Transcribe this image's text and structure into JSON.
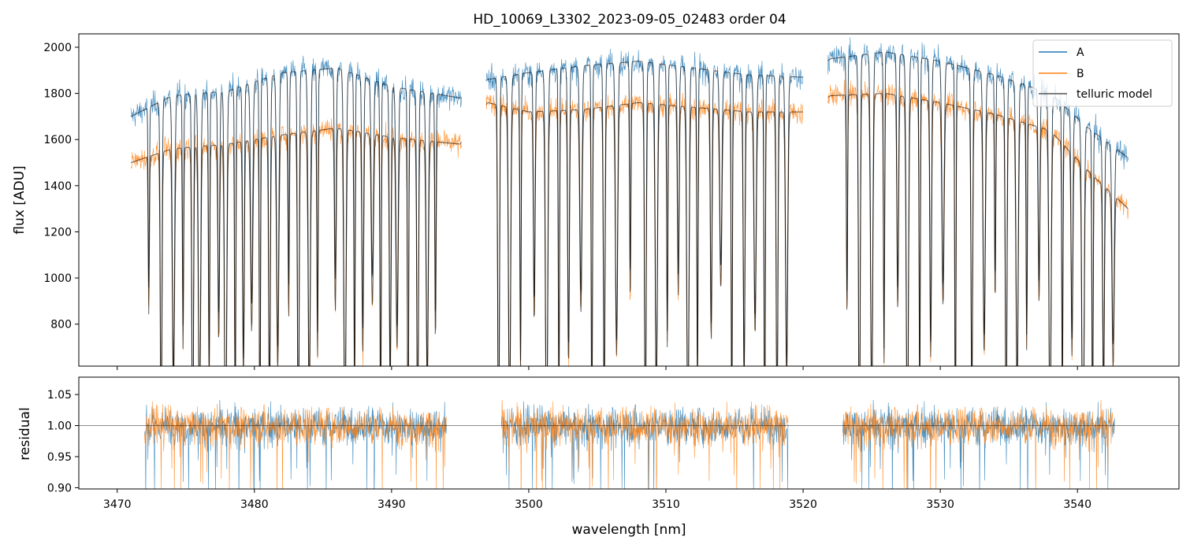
{
  "chart_data": [
    {
      "type": "line",
      "title": "HD_10069_L3302_2023-09-05_02483  order 04",
      "xlabel": "",
      "ylabel": "flux [ADU]",
      "xlim": [
        3467.2,
        3547.4
      ],
      "ylim": [
        618,
        2058
      ],
      "yticks": [
        800,
        1000,
        1200,
        1400,
        1600,
        1800,
        2000
      ],
      "xticks": [
        3470,
        3480,
        3490,
        3500,
        3510,
        3520,
        3530,
        3540
      ],
      "x_segments": [
        [
          3471.0,
          3495.1
        ],
        [
          3496.9,
          3520.0
        ],
        [
          3521.8,
          3543.7
        ]
      ],
      "series": [
        {
          "name": "A",
          "color": "#1f77b4",
          "continuum_anchors": [
            [
              3471,
              1700
            ],
            [
              3474,
              1790
            ],
            [
              3478,
              1810
            ],
            [
              3482,
              1890
            ],
            [
              3486,
              1910
            ],
            [
              3490,
              1830
            ],
            [
              3495,
              1780
            ],
            [
              3497,
              1860
            ],
            [
              3500,
              1890
            ],
            [
              3504,
              1920
            ],
            [
              3508,
              1940
            ],
            [
              3512,
              1910
            ],
            [
              3516,
              1880
            ],
            [
              3520,
              1870
            ],
            [
              3522,
              1950
            ],
            [
              3526,
              1980
            ],
            [
              3530,
              1940
            ],
            [
              3534,
              1880
            ],
            [
              3538,
              1800
            ],
            [
              3541,
              1640
            ],
            [
              3543.7,
              1520
            ]
          ]
        },
        {
          "name": "B",
          "color": "#ff7f0e",
          "continuum_anchors": [
            [
              3471,
              1500
            ],
            [
              3474,
              1560
            ],
            [
              3478,
              1580
            ],
            [
              3482,
              1620
            ],
            [
              3486,
              1650
            ],
            [
              3490,
              1610
            ],
            [
              3495,
              1580
            ],
            [
              3497,
              1760
            ],
            [
              3500,
              1720
            ],
            [
              3504,
              1730
            ],
            [
              3508,
              1760
            ],
            [
              3512,
              1740
            ],
            [
              3516,
              1720
            ],
            [
              3520,
              1720
            ],
            [
              3522,
              1790
            ],
            [
              3526,
              1800
            ],
            [
              3530,
              1760
            ],
            [
              3534,
              1710
            ],
            [
              3538,
              1640
            ],
            [
              3541,
              1450
            ],
            [
              3543.7,
              1300
            ]
          ]
        },
        {
          "name": "telluric model",
          "color": "#000000",
          "alpha": 0.6
        }
      ],
      "absorption_lines_nm": [
        3472.3,
        3473.2,
        3474.1,
        3474.8,
        3475.5,
        3476.0,
        3476.7,
        3477.4,
        3477.9,
        3478.6,
        3479.2,
        3479.8,
        3480.4,
        3481.1,
        3481.7,
        3482.5,
        3483.2,
        3484.0,
        3484.6,
        3485.9,
        3486.6,
        3487.3,
        3487.9,
        3488.6,
        3489.2,
        3489.9,
        3490.4,
        3491.2,
        3491.9,
        3492.6,
        3493.2,
        3497.8,
        3498.6,
        3499.4,
        3500.4,
        3501.3,
        3502.2,
        3502.9,
        3503.8,
        3504.6,
        3505.5,
        3506.4,
        3507.4,
        3508.5,
        3509.3,
        3510.1,
        3510.9,
        3511.6,
        3512.3,
        3513.3,
        3514.0,
        3514.8,
        3515.7,
        3516.5,
        3517.2,
        3518.1,
        3518.8,
        3523.2,
        3524.1,
        3525.0,
        3525.9,
        3526.9,
        3527.6,
        3528.5,
        3529.3,
        3530.2,
        3531.1,
        3532.3,
        3533.2,
        3534.0,
        3534.8,
        3535.6,
        3536.3,
        3537.2,
        3538.0,
        3538.9,
        3539.6,
        3540.4,
        3541.1,
        3541.9,
        3542.6
      ]
    },
    {
      "type": "line",
      "title": "",
      "xlabel": "wavelength [nm]",
      "ylabel": "residual",
      "xlim": [
        3467.2,
        3547.4
      ],
      "ylim": [
        0.898,
        1.078
      ],
      "yticks": [
        0.9,
        0.95,
        1.0,
        1.05
      ],
      "xticks": [
        3470,
        3480,
        3490,
        3500,
        3510,
        3520,
        3530,
        3540
      ],
      "reference_line": 1.0,
      "x_segments": [
        [
          3472.0,
          3494.0
        ],
        [
          3498.0,
          3518.9
        ],
        [
          3522.9,
          3542.7
        ]
      ],
      "series": [
        {
          "name": "A",
          "color": "#1f77b4",
          "center": 1.0,
          "scatter": 0.03
        },
        {
          "name": "B",
          "color": "#ff7f0e",
          "center": 1.0,
          "scatter": 0.03
        }
      ]
    }
  ],
  "legend": {
    "placement": "top-right",
    "entries": [
      {
        "label": "A",
        "color": "#1f77b4"
      },
      {
        "label": "B",
        "color": "#ff7f0e"
      },
      {
        "label": "telluric model",
        "color": "#555555"
      }
    ]
  }
}
